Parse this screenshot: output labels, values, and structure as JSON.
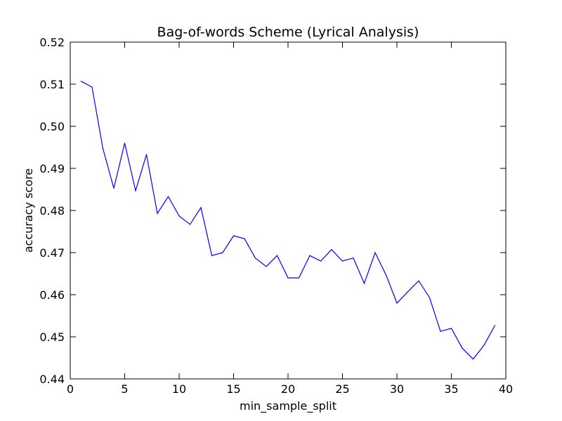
{
  "chart_data": {
    "type": "line",
    "title": "Bag-of-words Scheme (Lyrical Analysis)",
    "xlabel": "min_sample_split",
    "ylabel": "accuracy score",
    "xlim": [
      0,
      40
    ],
    "ylim": [
      0.44,
      0.52
    ],
    "xticks": [
      "0",
      "5",
      "10",
      "15",
      "20",
      "25",
      "30",
      "35",
      "40"
    ],
    "yticks": [
      "0.44",
      "0.45",
      "0.46",
      "0.47",
      "0.48",
      "0.49",
      "0.50",
      "0.51",
      "0.52"
    ],
    "grid": false,
    "line_color": "#0000ff",
    "series": [
      {
        "x": [
          1,
          2,
          3,
          4,
          5,
          6,
          7,
          8,
          9,
          10,
          11,
          12,
          13,
          14,
          15,
          16,
          17,
          18,
          19,
          20,
          21,
          22,
          23,
          24,
          25,
          26,
          27,
          28,
          29,
          30,
          31,
          32,
          33,
          34,
          35,
          36,
          37,
          38,
          39
        ],
        "values": [
          0.5107,
          0.5093,
          0.4947,
          0.4853,
          0.496,
          0.4847,
          0.4933,
          0.4793,
          0.4833,
          0.4787,
          0.4767,
          0.4807,
          0.4693,
          0.47,
          0.474,
          0.4733,
          0.4687,
          0.4667,
          0.4693,
          0.464,
          0.464,
          0.4693,
          0.468,
          0.4707,
          0.468,
          0.4687,
          0.4627,
          0.47,
          0.4647,
          0.458,
          0.4607,
          0.4633,
          0.4593,
          0.4513,
          0.452,
          0.4473,
          0.4447,
          0.448,
          0.4527
        ]
      }
    ]
  }
}
